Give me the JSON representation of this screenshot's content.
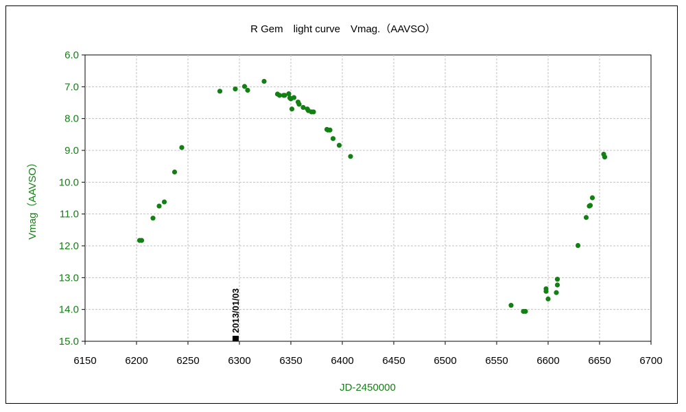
{
  "chart_data": {
    "type": "scatter",
    "title": "R Gem　light curve　Vmag.（AAVSO）",
    "xlabel": "JD-2450000",
    "ylabel": "Vmag（AAVSO）",
    "xlim": [
      6150,
      6700
    ],
    "ylim": [
      6.0,
      15.0
    ],
    "y_inverted": true,
    "x_ticks": [
      6150,
      6200,
      6250,
      6300,
      6350,
      6400,
      6450,
      6500,
      6550,
      6600,
      6650,
      6700
    ],
    "y_ticks": [
      "6.0",
      "7.0",
      "8.0",
      "9.0",
      "10.0",
      "11.0",
      "12.0",
      "13.0",
      "14.0",
      "15.0"
    ],
    "grid": true,
    "series": [
      {
        "color": "#138013",
        "points": [
          [
            6203,
            11.83
          ],
          [
            6205,
            11.83
          ],
          [
            6216,
            11.13
          ],
          [
            6222,
            10.75
          ],
          [
            6227,
            10.62
          ],
          [
            6237,
            9.68
          ],
          [
            6244,
            8.91
          ],
          [
            6281,
            7.14
          ],
          [
            6296,
            7.07
          ],
          [
            6305,
            6.99
          ],
          [
            6308,
            7.11
          ],
          [
            6324,
            6.83
          ],
          [
            6337,
            7.23
          ],
          [
            6339,
            7.27
          ],
          [
            6343,
            7.27
          ],
          [
            6344,
            7.27
          ],
          [
            6348,
            7.22
          ],
          [
            6349,
            7.35
          ],
          [
            6350,
            7.38
          ],
          [
            6351,
            7.7
          ],
          [
            6353,
            7.34
          ],
          [
            6357,
            7.48
          ],
          [
            6358,
            7.55
          ],
          [
            6362,
            7.65
          ],
          [
            6366,
            7.7
          ],
          [
            6367,
            7.75
          ],
          [
            6370,
            7.79
          ],
          [
            6372,
            7.79
          ],
          [
            6385,
            8.34
          ],
          [
            6386,
            8.36
          ],
          [
            6388,
            8.36
          ],
          [
            6391,
            8.63
          ],
          [
            6397,
            8.84
          ],
          [
            6408,
            9.19
          ],
          [
            6564,
            13.87
          ],
          [
            6576,
            14.06
          ],
          [
            6578,
            14.06
          ],
          [
            6598,
            13.35
          ],
          [
            6598,
            13.43
          ],
          [
            6600,
            13.67
          ],
          [
            6608,
            13.47
          ],
          [
            6609,
            13.05
          ],
          [
            6609,
            13.23
          ],
          [
            6629,
            11.99
          ],
          [
            6637,
            11.11
          ],
          [
            6640,
            10.75
          ],
          [
            6641,
            10.73
          ],
          [
            6643,
            10.49
          ],
          [
            6654,
            9.12
          ],
          [
            6655,
            9.21
          ]
        ]
      }
    ],
    "annotation": {
      "text": "2013/01/03",
      "x": 6296,
      "color": "#000000"
    }
  },
  "colors": {
    "axis_text": "#138013",
    "grid": "#c0c0c0",
    "marker": "#138013"
  }
}
